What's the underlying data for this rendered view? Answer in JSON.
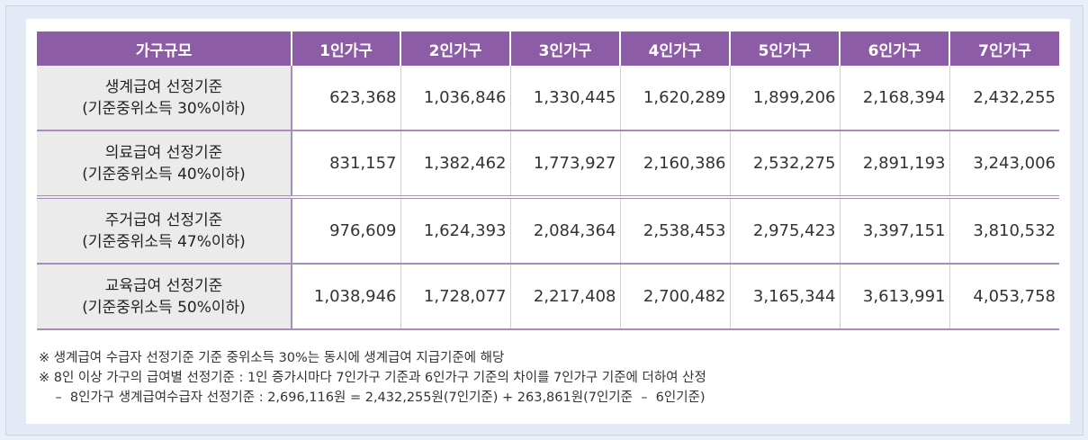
{
  "table": {
    "headers": [
      "가구규모",
      "1인가구",
      "2인가구",
      "3인가구",
      "4인가구",
      "5인가구",
      "6인가구",
      "7인가구"
    ],
    "rows": [
      {
        "label_1": "생계급여 선정기준",
        "label_2": "(기준중위소득 30%이하)",
        "values": [
          "623,368",
          "1,036,846",
          "1,330,445",
          "1,620,289",
          "1,899,206",
          "2,168,394",
          "2,432,255"
        ]
      },
      {
        "label_1": "의료급여 선정기준",
        "label_2": "(기준중위소득 40%이하)",
        "values": [
          "831,157",
          "1,382,462",
          "1,773,927",
          "2,160,386",
          "2,532,275",
          "2,891,193",
          "3,243,006"
        ]
      },
      {
        "label_1": "주거급여 선정기준",
        "label_2": "(기준중위소득 47%이하)",
        "values": [
          "976,609",
          "1,624,393",
          "2,084,364",
          "2,538,453",
          "2,975,423",
          "3,397,151",
          "3,810,532"
        ]
      },
      {
        "label_1": "교육급여 선정기준",
        "label_2": "(기준중위소득 50%이하)",
        "values": [
          "1,038,946",
          "1,728,077",
          "2,217,408",
          "2,700,482",
          "3,165,344",
          "3,613,991",
          "4,053,758"
        ]
      }
    ]
  },
  "notes": [
    "※  생계급여 수급자 선정기준 기준 중위소득 30%는 동시에 생계급여 지급기준에 해당",
    "※  8인 이상 가구의 급여별 선정기준 : 1인 증가시마다 7인가구 기준과 6인가구 기준의 차이를 7인가구 기준에 더하여 산정",
    "    –  8인가구 생계급여수급자 선정기준 : 2,696,116원 = 2,432,255원(7인기준) + 263,861원(7인기준  –  6인기준)"
  ]
}
